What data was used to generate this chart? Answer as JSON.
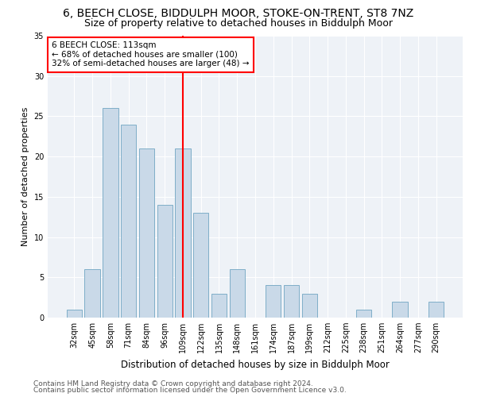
{
  "title1": "6, BEECH CLOSE, BIDDULPH MOOR, STOKE-ON-TRENT, ST8 7NZ",
  "title2": "Size of property relative to detached houses in Biddulph Moor",
  "xlabel": "Distribution of detached houses by size in Biddulph Moor",
  "ylabel": "Number of detached properties",
  "categories": [
    "32sqm",
    "45sqm",
    "58sqm",
    "71sqm",
    "84sqm",
    "96sqm",
    "109sqm",
    "122sqm",
    "135sqm",
    "148sqm",
    "161sqm",
    "174sqm",
    "187sqm",
    "199sqm",
    "212sqm",
    "225sqm",
    "238sqm",
    "251sqm",
    "264sqm",
    "277sqm",
    "290sqm"
  ],
  "values": [
    1,
    6,
    26,
    24,
    21,
    14,
    21,
    13,
    3,
    6,
    0,
    4,
    4,
    3,
    0,
    0,
    1,
    0,
    2,
    0,
    2
  ],
  "bar_color": "#c9d9e8",
  "bar_edge_color": "#7faec8",
  "vline_color": "red",
  "vline_x": 6,
  "annotation_line1": "6 BEECH CLOSE: 113sqm",
  "annotation_line2": "← 68% of detached houses are smaller (100)",
  "annotation_line3": "32% of semi-detached houses are larger (48) →",
  "annotation_box_color": "white",
  "annotation_box_edge_color": "red",
  "ylim": [
    0,
    35
  ],
  "yticks": [
    0,
    5,
    10,
    15,
    20,
    25,
    30,
    35
  ],
  "footer1": "Contains HM Land Registry data © Crown copyright and database right 2024.",
  "footer2": "Contains public sector information licensed under the Open Government Licence v3.0.",
  "plot_bg_color": "#eef2f7",
  "title1_fontsize": 10,
  "title2_fontsize": 9,
  "xlabel_fontsize": 8.5,
  "ylabel_fontsize": 8,
  "tick_fontsize": 7,
  "annotation_fontsize": 7.5,
  "footer_fontsize": 6.5
}
